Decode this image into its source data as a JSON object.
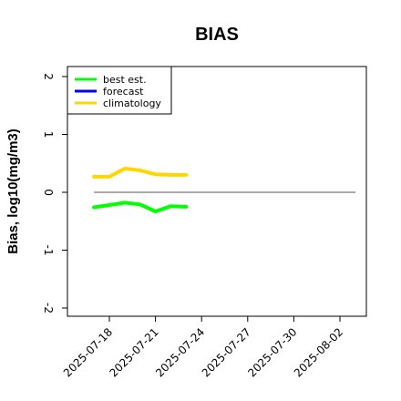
{
  "chart_data": {
    "type": "line",
    "title": "BIAS",
    "ylabel": "Bias, log10(mg/m3)",
    "xlabel": "",
    "ylim": [
      -2,
      2
    ],
    "yticks": [
      2,
      1,
      0,
      -1,
      -2
    ],
    "xlim": [
      "2025-07-16",
      "2025-08-03"
    ],
    "xticks": [
      "2025-07-18",
      "2025-07-21",
      "2025-07-24",
      "2025-07-27",
      "2025-07-30",
      "2025-08-02"
    ],
    "highlighted_xtick": "2025-07-24",
    "highlight_color": "#2e8b2e",
    "reference_line": 0,
    "grid": false,
    "legend_position": "top-left",
    "series": [
      {
        "name": "best est.",
        "color": "#00ff00",
        "x": [
          "2025-07-17",
          "2025-07-18",
          "2025-07-19",
          "2025-07-20",
          "2025-07-21",
          "2025-07-22",
          "2025-07-23"
        ],
        "values": [
          -0.26,
          -0.22,
          -0.18,
          -0.21,
          -0.33,
          -0.24,
          -0.25
        ]
      },
      {
        "name": "forecast",
        "color": "#0000ff",
        "x": [],
        "values": []
      },
      {
        "name": "climatology",
        "color": "#ffd700",
        "x": [
          "2025-07-17",
          "2025-07-18",
          "2025-07-19",
          "2025-07-20",
          "2025-07-21",
          "2025-07-22",
          "2025-07-23"
        ],
        "values": [
          0.27,
          0.27,
          0.41,
          0.38,
          0.31,
          0.3,
          0.3
        ]
      }
    ]
  }
}
